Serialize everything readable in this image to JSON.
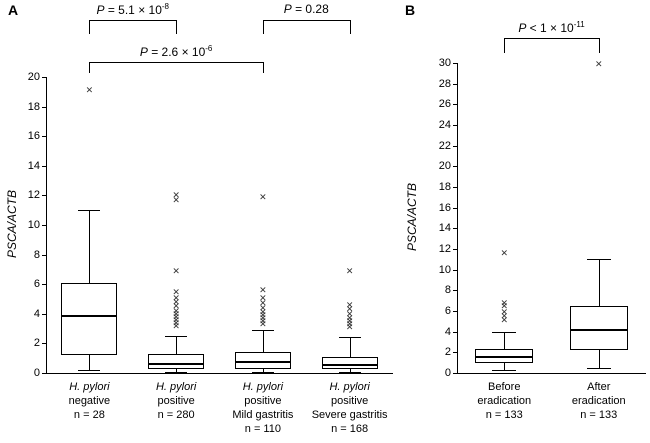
{
  "chart_data": [
    {
      "type": "boxplot",
      "panel": "A",
      "ylabel": "PSCA/ACTB",
      "ylim": [
        0,
        20
      ],
      "ytick_step": 2,
      "groups": [
        {
          "label_lines": [
            "H. pylori",
            "negative",
            "n = 28"
          ],
          "italic_first_line": true,
          "box": {
            "whisker_low": 0.2,
            "q1": 1.2,
            "median": 3.9,
            "q3": 6.1,
            "whisker_high": 11.0
          },
          "outliers": [
            19.0
          ]
        },
        {
          "label_lines": [
            "H. pylori",
            "positive",
            "n = 280"
          ],
          "italic_first_line": true,
          "box": {
            "whisker_low": 0.05,
            "q1": 0.3,
            "median": 0.7,
            "q3": 1.3,
            "whisker_high": 2.5
          },
          "outliers": [
            3.1,
            3.3,
            3.5,
            3.7,
            3.9,
            4.1,
            4.4,
            4.7,
            5.0,
            5.4,
            6.8,
            11.6,
            11.9
          ]
        },
        {
          "label_lines": [
            "H. pylori",
            "positive",
            "Mild gastritis",
            "n = 110"
          ],
          "italic_first_line": true,
          "box": {
            "whisker_low": 0.05,
            "q1": 0.3,
            "median": 0.8,
            "q3": 1.4,
            "whisker_high": 2.9
          },
          "outliers": [
            3.2,
            3.4,
            3.6,
            3.8,
            4.0,
            4.3,
            4.6,
            5.0,
            5.5,
            11.8
          ]
        },
        {
          "label_lines": [
            "H. pylori",
            "positive",
            "Severe gastritis",
            "n = 168"
          ],
          "italic_first_line": true,
          "box": {
            "whisker_low": 0.05,
            "q1": 0.25,
            "median": 0.6,
            "q3": 1.1,
            "whisker_high": 2.4
          },
          "outliers": [
            3.0,
            3.2,
            3.4,
            3.6,
            3.9,
            4.2,
            4.5,
            6.8
          ]
        }
      ],
      "brackets": [
        {
          "from": 0,
          "to": 1,
          "p_italic": "P",
          "p_text": " = 5.1 × 10",
          "p_sup": "-8",
          "tier": 0
        },
        {
          "from": 2,
          "to": 3,
          "p_italic": "P",
          "p_text": " = 0.28",
          "p_sup": "",
          "tier": 0
        },
        {
          "from": 0,
          "to": 2,
          "p_italic": "P",
          "p_text": " = 2.6 × 10",
          "p_sup": "-6",
          "tier": 1
        }
      ]
    },
    {
      "type": "boxplot",
      "panel": "B",
      "ylabel": "PSCA/ACTB",
      "ylim": [
        0,
        30
      ],
      "ytick_step": 2,
      "groups": [
        {
          "label_lines": [
            "Before",
            "eradication",
            "n = 133"
          ],
          "italic_first_line": false,
          "box": {
            "whisker_low": 0.3,
            "q1": 1.0,
            "median": 1.6,
            "q3": 2.3,
            "whisker_high": 4.0
          },
          "outliers": [
            5.0,
            5.4,
            5.8,
            6.3,
            6.6,
            11.5
          ]
        },
        {
          "label_lines": [
            "After",
            "eradication",
            "n = 133"
          ],
          "italic_first_line": false,
          "box": {
            "whisker_low": 0.5,
            "q1": 2.2,
            "median": 4.3,
            "q3": 6.5,
            "whisker_high": 11.0
          },
          "outliers": [
            29.8
          ]
        }
      ],
      "brackets": [
        {
          "from": 0,
          "to": 1,
          "p_italic": "P",
          "p_text": " < 1 × 10",
          "p_sup": "-11",
          "tier": 0
        }
      ]
    }
  ]
}
